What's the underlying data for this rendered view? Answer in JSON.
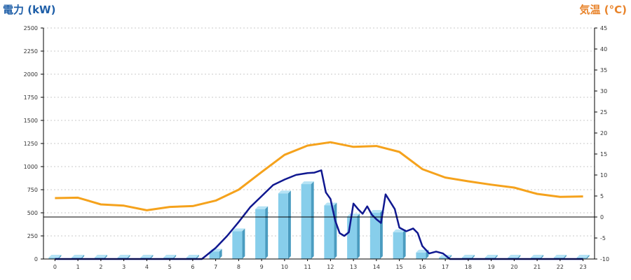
{
  "chart_data": {
    "type": "bar",
    "title": "",
    "ylabel": "電力 (kW)",
    "ylabel_right": "気温 (°C)",
    "xlim": [
      -0.5,
      23.5
    ],
    "ylim": [
      0,
      2500
    ],
    "ylim_right": [
      -10,
      45
    ],
    "categories": [
      "0",
      "1",
      "2",
      "3",
      "4",
      "5",
      "6",
      "7",
      "8",
      "9",
      "10",
      "11",
      "12",
      "13",
      "14",
      "15",
      "16",
      "17",
      "18",
      "19",
      "20",
      "21",
      "22",
      "23"
    ],
    "y_ticks_left": [
      0,
      250,
      500,
      750,
      1000,
      1250,
      1500,
      1750,
      2000,
      2250,
      2500
    ],
    "y_ticks_right": [
      -10,
      -5,
      0,
      5,
      10,
      15,
      20,
      25,
      30,
      35,
      40,
      45
    ],
    "grid": true,
    "colors": {
      "bars": "#87ceeb",
      "bars_side": "#4a9cc0",
      "bars_top": "#b5e3f5",
      "power_line": "#101890",
      "temp_line": "#f5a21c",
      "zero_line": "#000000"
    },
    "series": [
      {
        "kind": "bar",
        "axis": "left",
        "values": [
          15,
          15,
          15,
          15,
          15,
          15,
          15,
          80,
          300,
          540,
          710,
          810,
          580,
          460,
          500,
          290,
          70,
          15,
          15,
          15,
          15,
          15,
          15,
          15
        ]
      },
      {
        "kind": "line",
        "axis": "left",
        "points": [
          [
            0,
            0
          ],
          [
            1,
            0
          ],
          [
            2,
            0
          ],
          [
            3,
            0
          ],
          [
            4,
            0
          ],
          [
            5,
            0
          ],
          [
            6,
            0
          ],
          [
            6.4,
            0
          ],
          [
            7,
            120
          ],
          [
            7.5,
            250
          ],
          [
            8,
            400
          ],
          [
            8.5,
            560
          ],
          [
            9,
            680
          ],
          [
            9.5,
            800
          ],
          [
            10,
            860
          ],
          [
            10.5,
            910
          ],
          [
            11,
            930
          ],
          [
            11.3,
            935
          ],
          [
            11.6,
            960
          ],
          [
            11.8,
            720
          ],
          [
            12,
            650
          ],
          [
            12.2,
            420
          ],
          [
            12.4,
            280
          ],
          [
            12.6,
            250
          ],
          [
            12.8,
            290
          ],
          [
            13,
            600
          ],
          [
            13.2,
            540
          ],
          [
            13.4,
            490
          ],
          [
            13.6,
            570
          ],
          [
            13.8,
            480
          ],
          [
            14,
            430
          ],
          [
            14.2,
            390
          ],
          [
            14.4,
            700
          ],
          [
            14.6,
            620
          ],
          [
            14.8,
            540
          ],
          [
            15,
            340
          ],
          [
            15.3,
            300
          ],
          [
            15.6,
            330
          ],
          [
            15.8,
            280
          ],
          [
            16,
            140
          ],
          [
            16.3,
            60
          ],
          [
            16.6,
            80
          ],
          [
            16.9,
            60
          ],
          [
            17.2,
            0
          ],
          [
            18,
            0
          ],
          [
            19,
            0
          ],
          [
            20,
            0
          ],
          [
            21,
            0
          ],
          [
            22,
            0
          ],
          [
            23,
            0
          ]
        ]
      },
      {
        "kind": "line",
        "axis": "right",
        "values": [
          4.5,
          4.6,
          3.0,
          2.7,
          1.6,
          2.4,
          2.6,
          3.9,
          6.5,
          10.7,
          14.8,
          17.0,
          17.8,
          16.7,
          16.9,
          15.5,
          11.4,
          9.4,
          8.5,
          7.7,
          7.0,
          5.5,
          4.8,
          4.9
        ]
      }
    ]
  }
}
